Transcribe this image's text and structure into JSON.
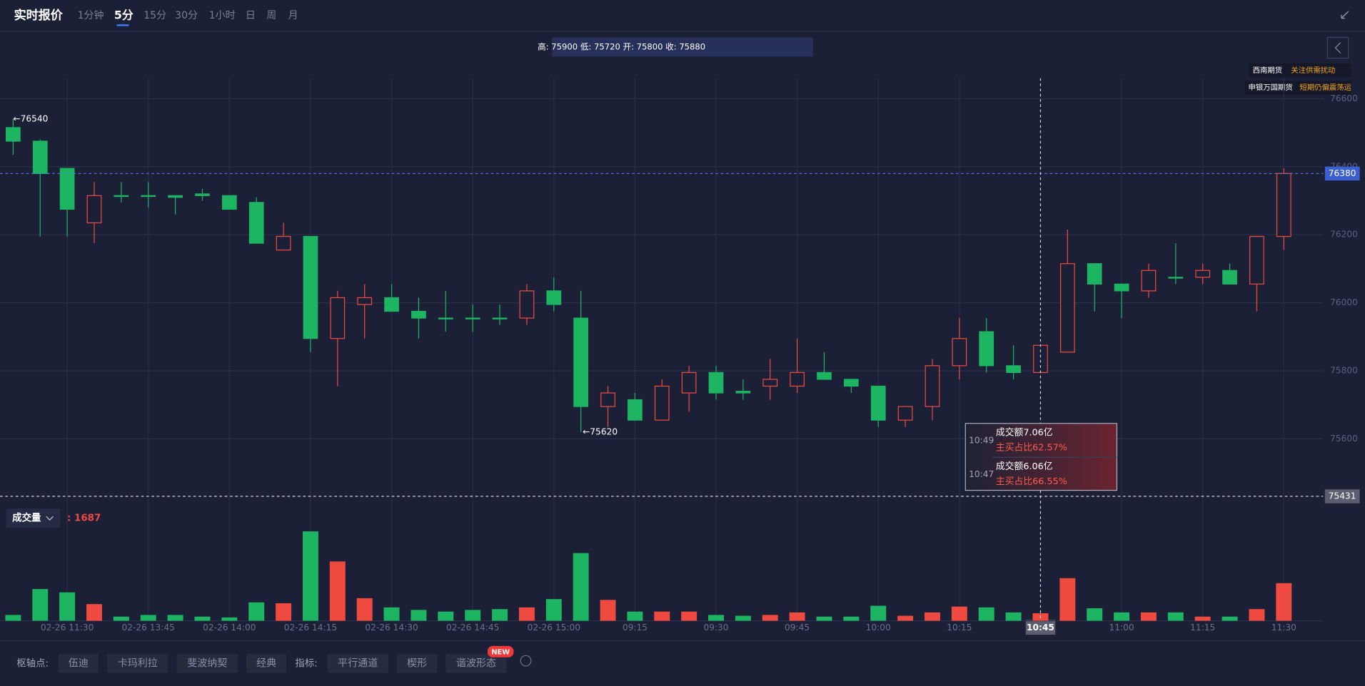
{
  "header": {
    "title": "实时报价",
    "periods": [
      "1分钟",
      "5分",
      "15分",
      "30分",
      "1小时",
      "日",
      "周",
      "月"
    ],
    "active_period": 1
  },
  "info_bar": "高: 75900 低: 75720 开: 75800 收: 75880",
  "brokers": [
    {
      "name": "西南期货",
      "note": "关注供需扰动"
    },
    {
      "name": "申银万国期货",
      "note": "短期仍偏震荡运"
    }
  ],
  "chart_data": {
    "type": "candlestick",
    "categories": [
      null,
      null,
      "02-26 11:30",
      null,
      null,
      "02-26 13:45",
      null,
      null,
      "02-26 14:00",
      null,
      null,
      "02-26 14:15",
      null,
      null,
      "02-26 14:30",
      null,
      null,
      "02-26 14:45",
      null,
      null,
      "02-26 15:00",
      null,
      null,
      "09:15",
      null,
      null,
      "09:30",
      null,
      null,
      "09:45",
      null,
      null,
      "10:00",
      null,
      null,
      "10:15",
      null,
      null,
      "10:45",
      null,
      null,
      "11:00",
      null,
      null,
      "11:15",
      null,
      null,
      "11:30"
    ],
    "open": [
      76515,
      76475,
      76395,
      76235,
      76315,
      76315,
      76315,
      76320,
      76315,
      76295,
      76155,
      76195,
      75895,
      75995,
      76015,
      75975,
      75955,
      75955,
      75955,
      75955,
      76035,
      75955,
      75695,
      75715,
      75655,
      75735,
      75795,
      75740,
      75755,
      75755,
      75795,
      75775,
      75755,
      75655,
      75695,
      75815,
      75915,
      75815,
      75795,
      75855,
      76115,
      76055,
      76035,
      76075,
      76075,
      76095,
      76055,
      76195
    ],
    "high": [
      76540,
      76480,
      76395,
      76355,
      76355,
      76355,
      76315,
      76335,
      76315,
      76310,
      76235,
      76195,
      76035,
      76055,
      76055,
      76015,
      76035,
      75995,
      75995,
      76055,
      76075,
      76035,
      75755,
      75735,
      75775,
      75815,
      75815,
      75775,
      75835,
      75895,
      75855,
      75775,
      75755,
      75695,
      75835,
      75955,
      75955,
      75875,
      75875,
      76215,
      76115,
      76055,
      76115,
      76175,
      76115,
      76115,
      76195,
      76395
    ],
    "low": [
      76435,
      76195,
      76195,
      76175,
      76295,
      76280,
      76260,
      76300,
      76275,
      76175,
      76155,
      75855,
      75755,
      75895,
      75975,
      75895,
      75915,
      75915,
      75935,
      75935,
      75975,
      75620,
      75635,
      75655,
      75655,
      75680,
      75715,
      75715,
      75715,
      75735,
      75775,
      75735,
      75635,
      75635,
      75655,
      75775,
      75795,
      75775,
      75795,
      75855,
      75975,
      75955,
      76015,
      76055,
      76055,
      76055,
      75975,
      76155
    ],
    "close": [
      76475,
      76380,
      76275,
      76315,
      76315,
      76315,
      76310,
      76315,
      76275,
      76175,
      76195,
      75895,
      76015,
      76015,
      75975,
      75955,
      75955,
      75955,
      75955,
      76035,
      75995,
      75695,
      75735,
      75655,
      75755,
      75795,
      75735,
      75735,
      75775,
      75795,
      75775,
      75755,
      75655,
      75695,
      75815,
      75895,
      75815,
      75795,
      75875,
      76115,
      76055,
      76035,
      76095,
      76075,
      76095,
      76055,
      76195,
      76380
    ],
    "up_color": "#ee4a40",
    "down_color": "#1db462",
    "ylim": [
      75400,
      76660
    ],
    "yticks": [
      75600,
      75800,
      76000,
      76200,
      76400,
      76600
    ],
    "grid": true,
    "last_price": 76380,
    "high_marker": {
      "value": 76540,
      "label": "←76540"
    },
    "low_marker": {
      "value": 75620,
      "label": "←75620"
    },
    "crosshair": {
      "category_index": 38,
      "price": 75431
    },
    "volume": {
      "label": "成交量",
      "value": 1687,
      "value_label": ": 1687",
      "vlim": [
        0,
        21400
      ],
      "values": [
        1309,
        7106,
        6358,
        3740,
        935,
        1309,
        1309,
        935,
        748,
        4114,
        3927,
        20009,
        13277,
        5049,
        2992,
        2431,
        2057,
        2431,
        2618,
        2992,
        4862,
        15147,
        4675,
        2057,
        2057,
        2057,
        1309,
        1122,
        1309,
        1870,
        935,
        935,
        3366,
        1122,
        1870,
        3179,
        2992,
        1870,
        1687,
        9537,
        2805,
        1870,
        1870,
        1870,
        935,
        935,
        2618,
        8415
      ]
    }
  },
  "tooltip": {
    "items": [
      {
        "time": "10:49",
        "amount": "成交额7.06亿",
        "ratio": "主买占比62.57%"
      },
      {
        "time": "10:47",
        "amount": "成交额6.06亿",
        "ratio": "主买占比66.55%"
      }
    ]
  },
  "footer": {
    "pivot_label": "枢轴点:",
    "pivot_buttons": [
      "伍迪",
      "卡玛利拉",
      "斐波纳契",
      "经典"
    ],
    "indicator_label": "指标:",
    "indicator_buttons": [
      "平行通道",
      "楔形",
      "谐波形态"
    ],
    "new_badge": "NEW"
  }
}
